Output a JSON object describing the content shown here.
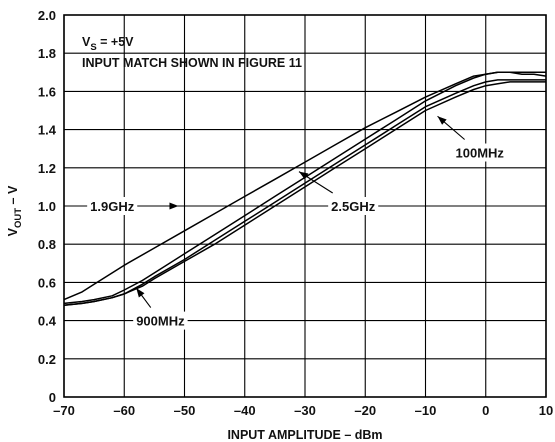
{
  "chart_data": {
    "type": "line",
    "xlabel": "INPUT AMPLITUDE – dBm",
    "ylabel": {
      "main": "V",
      "sub": "OUT",
      "suffix": " – V"
    },
    "xlim": [
      -70,
      10
    ],
    "ylim": [
      0,
      2.0
    ],
    "x_ticks": [
      -70,
      -60,
      -50,
      -40,
      -30,
      -20,
      -10,
      0,
      10
    ],
    "y_ticks": [
      0,
      0.2,
      0.4,
      0.6,
      0.8,
      1.0,
      1.2,
      1.4,
      1.6,
      1.8,
      2.0
    ],
    "x_tick_labels": [
      "–70",
      "–60",
      "–50",
      "–40",
      "–30",
      "–20",
      "–10",
      "0",
      "10"
    ],
    "y_tick_labels": [
      "0",
      "0.2",
      "0.4",
      "0.6",
      "0.8",
      "1.0",
      "1.2",
      "1.4",
      "1.6",
      "1.8",
      "2.0"
    ],
    "grid": true,
    "annotations": {
      "line1": {
        "main": "V",
        "sub": "S",
        "suffix": " = +5V"
      },
      "line2": "INPUT MATCH SHOWN IN FIGURE 11"
    },
    "series": [
      {
        "name": "1.9GHz",
        "x": [
          -70,
          -67,
          -65,
          -62,
          -60,
          -55,
          -50,
          -45,
          -40,
          -35,
          -30,
          -25,
          -20,
          -15,
          -10,
          -5,
          -2,
          0,
          2,
          4,
          6,
          8,
          10
        ],
        "y": [
          0.51,
          0.55,
          0.59,
          0.65,
          0.69,
          0.78,
          0.87,
          0.96,
          1.05,
          1.14,
          1.23,
          1.32,
          1.41,
          1.49,
          1.57,
          1.64,
          1.68,
          1.69,
          1.7,
          1.7,
          1.69,
          1.69,
          1.68
        ],
        "label": {
          "text": "1.9GHz",
          "lx": -62,
          "ly": 1.0,
          "ax": -51,
          "ay": 1.0
        }
      },
      {
        "name": "2.5GHz",
        "x": [
          -70,
          -67,
          -65,
          -62,
          -60,
          -57,
          -55,
          -50,
          -45,
          -40,
          -35,
          -30,
          -25,
          -20,
          -15,
          -10,
          -5,
          -2,
          0,
          2,
          4,
          6,
          8,
          10
        ],
        "y": [
          0.49,
          0.5,
          0.51,
          0.53,
          0.56,
          0.61,
          0.65,
          0.75,
          0.85,
          0.95,
          1.05,
          1.15,
          1.25,
          1.35,
          1.45,
          1.55,
          1.63,
          1.67,
          1.69,
          1.7,
          1.7,
          1.7,
          1.7,
          1.7
        ],
        "label": {
          "text": "2.5GHz",
          "lx": -22,
          "ly": 1.0,
          "ax": -31,
          "ay": 1.18
        }
      },
      {
        "name": "900MHz",
        "x": [
          -70,
          -67,
          -65,
          -62,
          -60,
          -57,
          -55,
          -50,
          -45,
          -40,
          -35,
          -30,
          -25,
          -20,
          -15,
          -10,
          -5,
          -2,
          0,
          2,
          4,
          6,
          8,
          10
        ],
        "y": [
          0.48,
          0.49,
          0.5,
          0.52,
          0.54,
          0.59,
          0.63,
          0.72,
          0.82,
          0.92,
          1.02,
          1.12,
          1.22,
          1.32,
          1.42,
          1.52,
          1.59,
          1.63,
          1.65,
          1.66,
          1.66,
          1.66,
          1.66,
          1.66
        ],
        "label": {
          "text": "900MHz",
          "lx": -54,
          "ly": 0.4,
          "ax": -58,
          "ay": 0.57
        }
      },
      {
        "name": "100MHz",
        "x": [
          -70,
          -67,
          -65,
          -62,
          -60,
          -57,
          -55,
          -50,
          -45,
          -40,
          -35,
          -30,
          -25,
          -20,
          -15,
          -10,
          -5,
          -2,
          0,
          2,
          4,
          6,
          8,
          10
        ],
        "y": [
          0.48,
          0.49,
          0.5,
          0.52,
          0.54,
          0.58,
          0.62,
          0.71,
          0.8,
          0.9,
          1.0,
          1.1,
          1.2,
          1.3,
          1.4,
          1.5,
          1.57,
          1.61,
          1.63,
          1.64,
          1.65,
          1.65,
          1.65,
          1.65
        ],
        "label": {
          "text": "100MHz",
          "lx": -1,
          "ly": 1.28,
          "ax": -8,
          "ay": 1.47
        }
      }
    ]
  }
}
